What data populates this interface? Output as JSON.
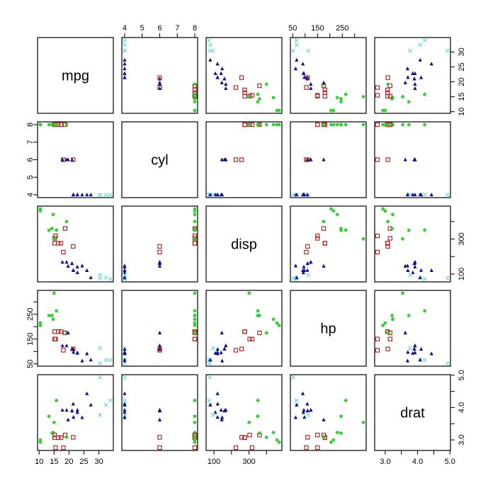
{
  "chart_data": {
    "type": "scatter-matrix",
    "variables": [
      "mpg",
      "cyl",
      "disp",
      "hp",
      "drat"
    ],
    "ranges": {
      "mpg": [
        10.4,
        33.9
      ],
      "cyl": [
        4,
        8
      ],
      "disp": [
        71.1,
        472
      ],
      "hp": [
        52,
        335
      ],
      "drat": [
        2.76,
        4.93
      ]
    },
    "ticks": {
      "mpg": {
        "values": [
          10,
          15,
          20,
          25,
          30
        ],
        "labels": [
          "10",
          "15",
          "20",
          "25",
          "30"
        ]
      },
      "cyl": {
        "values": [
          4,
          5,
          6,
          7,
          8
        ],
        "labels": [
          "4",
          "5",
          "6",
          "7",
          "8"
        ]
      },
      "disp": {
        "values": [
          100,
          200,
          300,
          400
        ],
        "labels": [
          "100",
          "",
          "300",
          ""
        ]
      },
      "hp": {
        "values": [
          50,
          100,
          150,
          200,
          250,
          300
        ],
        "labels": [
          "50",
          "",
          "150",
          "",
          "250",
          ""
        ]
      },
      "drat": {
        "values": [
          3.0,
          3.5,
          4.0,
          4.5,
          5.0
        ],
        "labels": [
          "3.0",
          "",
          "4.0",
          "",
          "5.0"
        ]
      }
    },
    "groups": [
      {
        "marker": "triangle-filled",
        "color": "#10108c"
      },
      {
        "marker": "square-open",
        "color": "#b22a2a"
      },
      {
        "marker": "asterisk",
        "color": "#33cc33"
      },
      {
        "marker": "x",
        "color": "#55d6d6"
      }
    ],
    "points": [
      [
        21,
        6,
        160,
        110,
        3.9,
        0
      ],
      [
        21,
        6,
        160,
        110,
        3.9,
        0
      ],
      [
        22.8,
        4,
        108,
        93,
        3.85,
        0
      ],
      [
        21.4,
        6,
        258,
        110,
        3.08,
        1
      ],
      [
        18.7,
        8,
        360,
        175,
        3.15,
        1
      ],
      [
        18.1,
        6,
        225,
        105,
        2.76,
        1
      ],
      [
        14.3,
        8,
        360,
        245,
        3.21,
        2
      ],
      [
        24.4,
        4,
        146.7,
        62,
        3.69,
        0
      ],
      [
        22.8,
        4,
        140.8,
        95,
        3.92,
        0
      ],
      [
        19.2,
        6,
        167.6,
        123,
        3.92,
        0
      ],
      [
        17.8,
        6,
        167.6,
        123,
        3.92,
        0
      ],
      [
        16.4,
        8,
        275.8,
        180,
        3.07,
        1
      ],
      [
        17.3,
        8,
        275.8,
        180,
        3.07,
        1
      ],
      [
        15.2,
        8,
        275.8,
        180,
        3.07,
        1
      ],
      [
        10.4,
        8,
        472,
        205,
        2.93,
        2
      ],
      [
        10.4,
        8,
        460,
        215,
        3.0,
        2
      ],
      [
        14.7,
        8,
        440,
        230,
        3.23,
        2
      ],
      [
        32.4,
        4,
        78.7,
        66,
        4.08,
        3
      ],
      [
        30.4,
        4,
        75.7,
        52,
        4.93,
        3
      ],
      [
        33.9,
        4,
        71.1,
        65,
        4.22,
        3
      ],
      [
        21.5,
        4,
        120.1,
        97,
        3.7,
        0
      ],
      [
        15.5,
        8,
        318,
        150,
        2.76,
        1
      ],
      [
        15.2,
        8,
        304,
        150,
        3.15,
        1
      ],
      [
        13.3,
        8,
        350,
        245,
        3.73,
        2
      ],
      [
        19.2,
        8,
        400,
        175,
        3.08,
        2
      ],
      [
        27.3,
        4,
        79,
        66,
        4.08,
        0
      ],
      [
        26,
        4,
        120.3,
        91,
        4.43,
        0
      ],
      [
        30.4,
        4,
        95.1,
        113,
        3.77,
        3
      ],
      [
        15.8,
        8,
        351,
        264,
        4.22,
        2
      ],
      [
        19.7,
        6,
        145,
        175,
        3.62,
        0
      ],
      [
        15,
        8,
        301,
        335,
        3.54,
        2
      ],
      [
        21.4,
        4,
        121,
        109,
        4.11,
        0
      ]
    ]
  }
}
